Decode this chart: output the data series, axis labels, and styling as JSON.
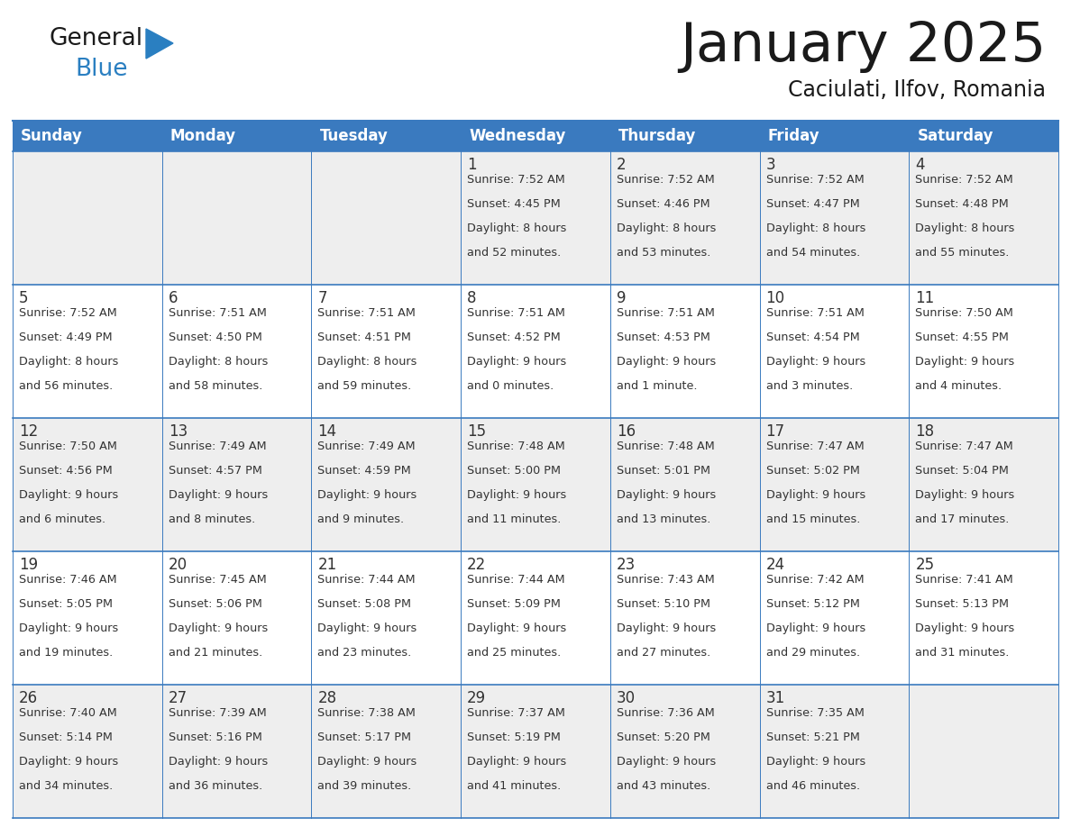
{
  "title": "January 2025",
  "subtitle": "Caciulati, Ilfov, Romania",
  "header_color": "#3a7abf",
  "header_text_color": "#ffffff",
  "bg_color": "#ffffff",
  "cell_bg_row0": "#eeeeee",
  "cell_bg_row1": "#ffffff",
  "cell_bg_row2": "#eeeeee",
  "cell_bg_row3": "#ffffff",
  "cell_bg_row4": "#eeeeee",
  "border_color": "#3a7abf",
  "text_color": "#333333",
  "day_names": [
    "Sunday",
    "Monday",
    "Tuesday",
    "Wednesday",
    "Thursday",
    "Friday",
    "Saturday"
  ],
  "days": [
    {
      "day": 1,
      "col": 3,
      "row": 0,
      "sunrise": "7:52 AM",
      "sunset": "4:45 PM",
      "daylight": "8 hours and 52 minutes."
    },
    {
      "day": 2,
      "col": 4,
      "row": 0,
      "sunrise": "7:52 AM",
      "sunset": "4:46 PM",
      "daylight": "8 hours and 53 minutes."
    },
    {
      "day": 3,
      "col": 5,
      "row": 0,
      "sunrise": "7:52 AM",
      "sunset": "4:47 PM",
      "daylight": "8 hours and 54 minutes."
    },
    {
      "day": 4,
      "col": 6,
      "row": 0,
      "sunrise": "7:52 AM",
      "sunset": "4:48 PM",
      "daylight": "8 hours and 55 minutes."
    },
    {
      "day": 5,
      "col": 0,
      "row": 1,
      "sunrise": "7:52 AM",
      "sunset": "4:49 PM",
      "daylight": "8 hours and 56 minutes."
    },
    {
      "day": 6,
      "col": 1,
      "row": 1,
      "sunrise": "7:51 AM",
      "sunset": "4:50 PM",
      "daylight": "8 hours and 58 minutes."
    },
    {
      "day": 7,
      "col": 2,
      "row": 1,
      "sunrise": "7:51 AM",
      "sunset": "4:51 PM",
      "daylight": "8 hours and 59 minutes."
    },
    {
      "day": 8,
      "col": 3,
      "row": 1,
      "sunrise": "7:51 AM",
      "sunset": "4:52 PM",
      "daylight": "9 hours and 0 minutes."
    },
    {
      "day": 9,
      "col": 4,
      "row": 1,
      "sunrise": "7:51 AM",
      "sunset": "4:53 PM",
      "daylight": "9 hours and 1 minute."
    },
    {
      "day": 10,
      "col": 5,
      "row": 1,
      "sunrise": "7:51 AM",
      "sunset": "4:54 PM",
      "daylight": "9 hours and 3 minutes."
    },
    {
      "day": 11,
      "col": 6,
      "row": 1,
      "sunrise": "7:50 AM",
      "sunset": "4:55 PM",
      "daylight": "9 hours and 4 minutes."
    },
    {
      "day": 12,
      "col": 0,
      "row": 2,
      "sunrise": "7:50 AM",
      "sunset": "4:56 PM",
      "daylight": "9 hours and 6 minutes."
    },
    {
      "day": 13,
      "col": 1,
      "row": 2,
      "sunrise": "7:49 AM",
      "sunset": "4:57 PM",
      "daylight": "9 hours and 8 minutes."
    },
    {
      "day": 14,
      "col": 2,
      "row": 2,
      "sunrise": "7:49 AM",
      "sunset": "4:59 PM",
      "daylight": "9 hours and 9 minutes."
    },
    {
      "day": 15,
      "col": 3,
      "row": 2,
      "sunrise": "7:48 AM",
      "sunset": "5:00 PM",
      "daylight": "9 hours and 11 minutes."
    },
    {
      "day": 16,
      "col": 4,
      "row": 2,
      "sunrise": "7:48 AM",
      "sunset": "5:01 PM",
      "daylight": "9 hours and 13 minutes."
    },
    {
      "day": 17,
      "col": 5,
      "row": 2,
      "sunrise": "7:47 AM",
      "sunset": "5:02 PM",
      "daylight": "9 hours and 15 minutes."
    },
    {
      "day": 18,
      "col": 6,
      "row": 2,
      "sunrise": "7:47 AM",
      "sunset": "5:04 PM",
      "daylight": "9 hours and 17 minutes."
    },
    {
      "day": 19,
      "col": 0,
      "row": 3,
      "sunrise": "7:46 AM",
      "sunset": "5:05 PM",
      "daylight": "9 hours and 19 minutes."
    },
    {
      "day": 20,
      "col": 1,
      "row": 3,
      "sunrise": "7:45 AM",
      "sunset": "5:06 PM",
      "daylight": "9 hours and 21 minutes."
    },
    {
      "day": 21,
      "col": 2,
      "row": 3,
      "sunrise": "7:44 AM",
      "sunset": "5:08 PM",
      "daylight": "9 hours and 23 minutes."
    },
    {
      "day": 22,
      "col": 3,
      "row": 3,
      "sunrise": "7:44 AM",
      "sunset": "5:09 PM",
      "daylight": "9 hours and 25 minutes."
    },
    {
      "day": 23,
      "col": 4,
      "row": 3,
      "sunrise": "7:43 AM",
      "sunset": "5:10 PM",
      "daylight": "9 hours and 27 minutes."
    },
    {
      "day": 24,
      "col": 5,
      "row": 3,
      "sunrise": "7:42 AM",
      "sunset": "5:12 PM",
      "daylight": "9 hours and 29 minutes."
    },
    {
      "day": 25,
      "col": 6,
      "row": 3,
      "sunrise": "7:41 AM",
      "sunset": "5:13 PM",
      "daylight": "9 hours and 31 minutes."
    },
    {
      "day": 26,
      "col": 0,
      "row": 4,
      "sunrise": "7:40 AM",
      "sunset": "5:14 PM",
      "daylight": "9 hours and 34 minutes."
    },
    {
      "day": 27,
      "col": 1,
      "row": 4,
      "sunrise": "7:39 AM",
      "sunset": "5:16 PM",
      "daylight": "9 hours and 36 minutes."
    },
    {
      "day": 28,
      "col": 2,
      "row": 4,
      "sunrise": "7:38 AM",
      "sunset": "5:17 PM",
      "daylight": "9 hours and 39 minutes."
    },
    {
      "day": 29,
      "col": 3,
      "row": 4,
      "sunrise": "7:37 AM",
      "sunset": "5:19 PM",
      "daylight": "9 hours and 41 minutes."
    },
    {
      "day": 30,
      "col": 4,
      "row": 4,
      "sunrise": "7:36 AM",
      "sunset": "5:20 PM",
      "daylight": "9 hours and 43 minutes."
    },
    {
      "day": 31,
      "col": 5,
      "row": 4,
      "sunrise": "7:35 AM",
      "sunset": "5:21 PM",
      "daylight": "9 hours and 46 minutes."
    }
  ],
  "logo_color1": "#1a1a1a",
  "logo_color2": "#2a7fc1",
  "logo_triangle_color": "#2a7fc1",
  "figwidth": 11.88,
  "figheight": 9.18,
  "dpi": 100
}
